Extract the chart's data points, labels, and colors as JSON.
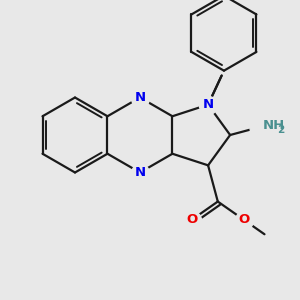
{
  "bg_color": "#e8e8e8",
  "bond_color": "#1a1a1a",
  "N_color": "#0000ee",
  "O_color": "#ee0000",
  "NH2_H_color": "#4a9090",
  "lw": 1.6,
  "lw_inner": 1.4,
  "figsize": [
    3.0,
    3.0
  ],
  "dpi": 100,
  "xlim": [
    0,
    10
  ],
  "ylim": [
    0,
    10
  ]
}
